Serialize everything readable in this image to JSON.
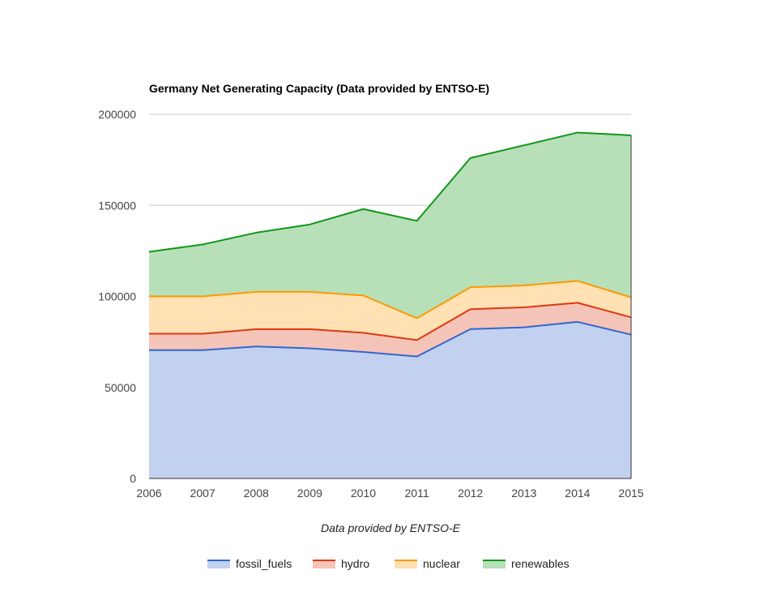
{
  "chart_data": {
    "type": "area",
    "stacked": true,
    "title": "Germany Net Generating Capacity (Data provided by ENTSO-E)",
    "xlabel": "Data provided by ENTSO-E",
    "ylabel": "",
    "x": [
      "2006",
      "2007",
      "2008",
      "2009",
      "2010",
      "2011",
      "2012",
      "2013",
      "2014",
      "2015"
    ],
    "ylim": [
      0,
      200000
    ],
    "yticks": [
      "0",
      "50000",
      "100000",
      "150000",
      "200000"
    ],
    "grid": true,
    "legend_position": "bottom",
    "series": [
      {
        "name": "fossil_fuels",
        "line_color": "#3366cc",
        "fill_color": "#c3d1f0",
        "values": [
          70500,
          70500,
          72500,
          71500,
          69500,
          67000,
          82000,
          83000,
          86000,
          79000
        ]
      },
      {
        "name": "hydro",
        "line_color": "#dc3912",
        "fill_color": "#f5c4b8",
        "values": [
          9000,
          9000,
          9500,
          10500,
          10500,
          9000,
          11000,
          11000,
          10500,
          9500
        ]
      },
      {
        "name": "nuclear",
        "line_color": "#ff9900",
        "fill_color": "#ffe1b3",
        "values": [
          20500,
          20500,
          20500,
          20500,
          20500,
          12000,
          12000,
          12000,
          12000,
          11000
        ]
      },
      {
        "name": "renewables",
        "line_color": "#109618",
        "fill_color": "#b7e0b9",
        "values": [
          24500,
          28500,
          32500,
          37000,
          47500,
          53500,
          71000,
          77000,
          81500,
          89000
        ]
      }
    ]
  }
}
